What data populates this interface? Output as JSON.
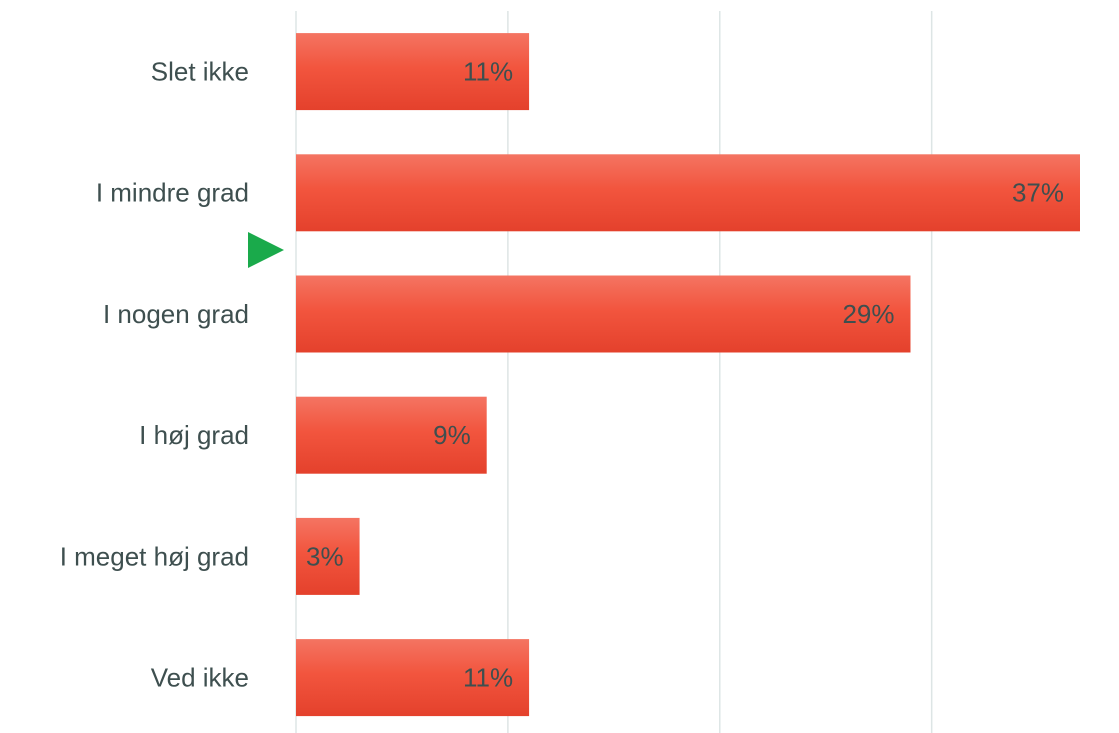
{
  "chart_data": {
    "type": "hbar",
    "categories": [
      "Slet ikke",
      "I mindre grad",
      "I nogen grad",
      "I høj grad",
      "I meget høj grad",
      "Ved ikke"
    ],
    "values": [
      11,
      37,
      29,
      9,
      3,
      11
    ],
    "value_labels": [
      "11%",
      "37%",
      "29%",
      "9%",
      "3%",
      "11%"
    ],
    "color": "#ee4b35",
    "xlim": [
      0,
      37
    ],
    "xticks": [
      0,
      10,
      20,
      30
    ],
    "grid": true
  }
}
